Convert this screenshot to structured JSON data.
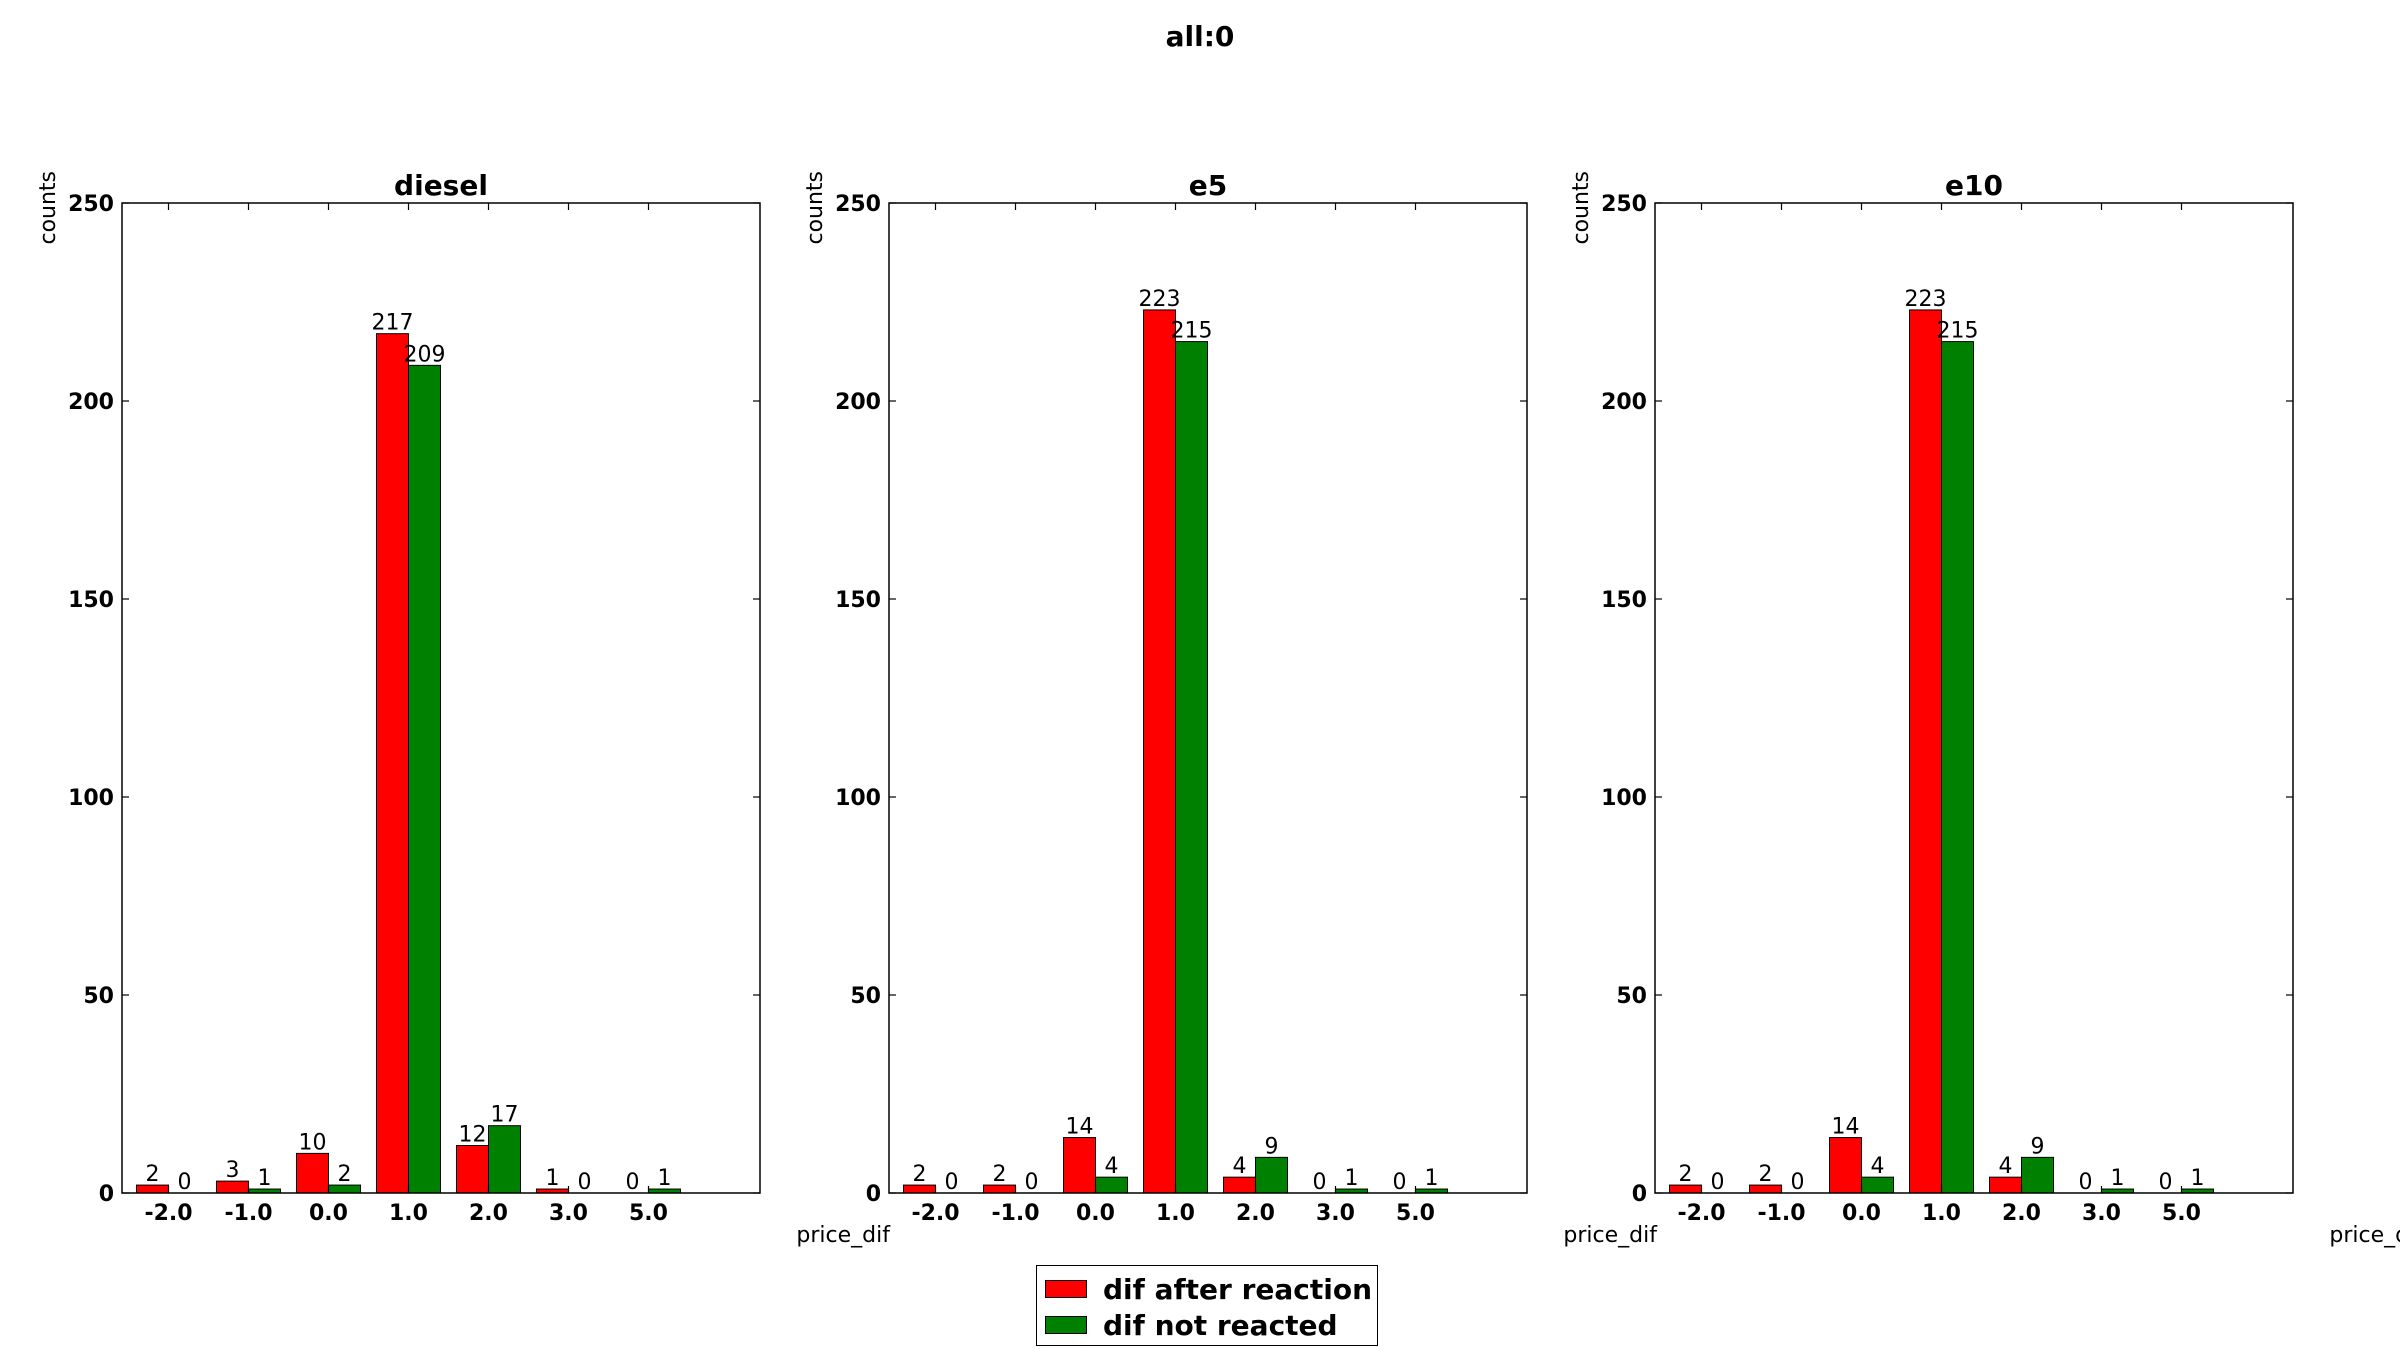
{
  "figure": {
    "suptitle": "all:0"
  },
  "colors": {
    "after_reaction": "#ff0000",
    "not_reacted": "#008000"
  },
  "legend": {
    "placement": "bottom-center",
    "items": [
      {
        "label": "dif after reaction",
        "color": "#ff0000"
      },
      {
        "label": "dif not reacted",
        "color": "#008000"
      }
    ]
  },
  "chart_data": [
    {
      "type": "bar",
      "title": "diesel",
      "xlabel": "price_dif",
      "ylabel": "counts",
      "ylim": [
        0,
        250
      ],
      "yticks": [
        0,
        50,
        100,
        150,
        200,
        250
      ],
      "categories": [
        "-2.0",
        "-1.0",
        "0.0",
        "1.0",
        "2.0",
        "3.0",
        "5.0"
      ],
      "series": [
        {
          "name": "dif after reaction",
          "values": [
            2,
            3,
            10,
            217,
            12,
            1,
            0
          ]
        },
        {
          "name": "dif not reacted",
          "values": [
            0,
            1,
            2,
            209,
            17,
            0,
            1
          ]
        }
      ]
    },
    {
      "type": "bar",
      "title": "e5",
      "xlabel": "price_dif",
      "ylabel": "counts",
      "ylim": [
        0,
        250
      ],
      "yticks": [
        0,
        50,
        100,
        150,
        200,
        250
      ],
      "categories": [
        "-2.0",
        "-1.0",
        "0.0",
        "1.0",
        "2.0",
        "3.0",
        "5.0"
      ],
      "series": [
        {
          "name": "dif after reaction",
          "values": [
            2,
            2,
            14,
            223,
            4,
            0,
            0
          ]
        },
        {
          "name": "dif not reacted",
          "values": [
            0,
            0,
            4,
            215,
            9,
            1,
            1
          ]
        }
      ]
    },
    {
      "type": "bar",
      "title": "e10",
      "xlabel": "price_dif",
      "ylabel": "counts",
      "ylim": [
        0,
        250
      ],
      "yticks": [
        0,
        50,
        100,
        150,
        200,
        250
      ],
      "categories": [
        "-2.0",
        "-1.0",
        "0.0",
        "1.0",
        "2.0",
        "3.0",
        "5.0"
      ],
      "series": [
        {
          "name": "dif after reaction",
          "values": [
            2,
            2,
            14,
            223,
            4,
            0,
            0
          ]
        },
        {
          "name": "dif not reacted",
          "values": [
            0,
            0,
            4,
            215,
            9,
            1,
            1
          ]
        }
      ]
    }
  ]
}
